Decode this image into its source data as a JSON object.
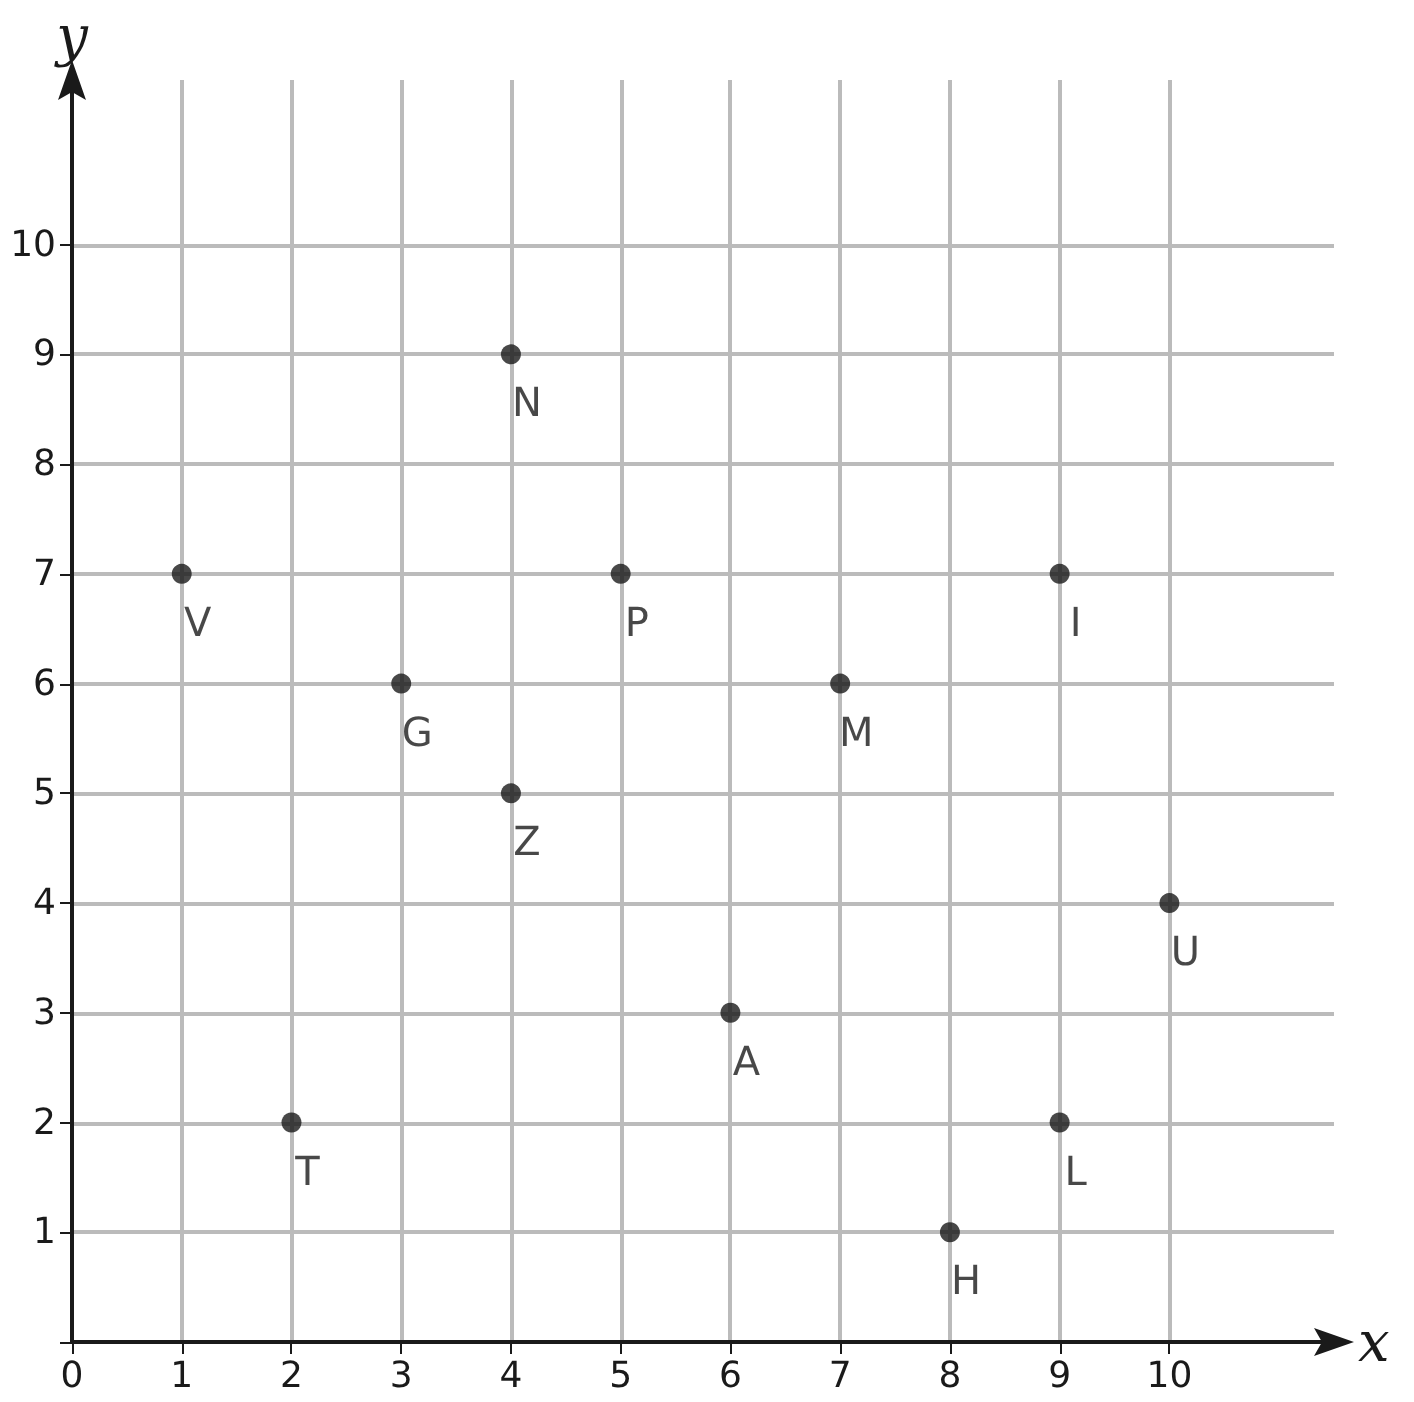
{
  "chart_data": {
    "type": "scatter",
    "xlabel": "x",
    "ylabel": "y",
    "x": [
      1,
      2,
      3,
      4,
      4,
      5,
      6,
      7,
      8,
      9,
      9,
      10
    ],
    "values": [
      7,
      2,
      6,
      9,
      5,
      7,
      3,
      6,
      1,
      2,
      7,
      4
    ],
    "value_labels": [
      "V",
      "T",
      "G",
      "N",
      "Z",
      "P",
      "A",
      "M",
      "H",
      "L",
      "I",
      "U"
    ],
    "color": "#1a1a1a",
    "marker": "circle",
    "grid": true,
    "xlim": [
      0,
      11.5
    ],
    "ylim": [
      0,
      11.5
    ],
    "xticks": [
      0,
      1,
      2,
      3,
      4,
      5,
      6,
      7,
      8,
      9,
      10
    ],
    "yticks": [
      {
        "value": 0,
        "label": null
      },
      1,
      2,
      3,
      4,
      5,
      6,
      7,
      8,
      9,
      10
    ]
  }
}
